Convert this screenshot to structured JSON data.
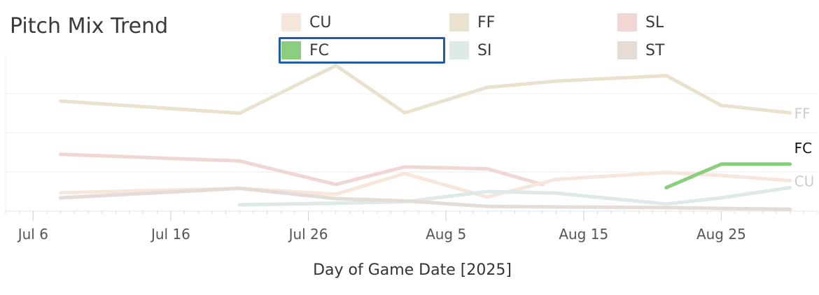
{
  "title": "Pitch Mix Trend",
  "legend": [
    {
      "label": "CU",
      "color": "#f6e6dc",
      "selected": false
    },
    {
      "label": "FF",
      "color": "#e9e2cf",
      "selected": false
    },
    {
      "label": "SL",
      "color": "#f1d6d6",
      "selected": false
    },
    {
      "label": "FC",
      "color": "#8ace7e",
      "selected": true
    },
    {
      "label": "SI",
      "color": "#dfe9e7",
      "selected": false
    },
    {
      "label": "ST",
      "color": "#e4dcd7",
      "selected": false
    }
  ],
  "chart_data": {
    "type": "line",
    "xlabel": "Day of Game Date [2025]",
    "ylabel": "",
    "x_ticks": [
      "Jul 6",
      "Jul 16",
      "Jul 26",
      "Aug 5",
      "Aug 15",
      "Aug 25"
    ],
    "xlim": [
      "2025-07-04",
      "2025-09-01"
    ],
    "ylim": [
      0,
      40
    ],
    "grid": true,
    "series": [
      {
        "name": "FF",
        "color": "#e9e2cf",
        "end_label_color": "#cccccc",
        "points": [
          [
            "2025-07-08",
            28.1
          ],
          [
            "2025-07-21",
            25.0
          ],
          [
            "2025-07-28",
            37.2
          ],
          [
            "2025-08-02",
            25.1
          ],
          [
            "2025-08-08",
            31.6
          ],
          [
            "2025-08-13",
            33.2
          ],
          [
            "2025-08-21",
            34.6
          ],
          [
            "2025-08-25",
            27.0
          ],
          [
            "2025-08-30",
            25.1
          ]
        ]
      },
      {
        "name": "SL",
        "color": "#f1d6d6",
        "points": [
          [
            "2025-07-08",
            14.5
          ],
          [
            "2025-07-21",
            12.8
          ],
          [
            "2025-07-28",
            6.8
          ],
          [
            "2025-08-02",
            11.3
          ],
          [
            "2025-08-08",
            10.8
          ],
          [
            "2025-08-12",
            6.8
          ]
        ]
      },
      {
        "name": "CU",
        "color": "#f6e6dc",
        "end_label_color": "#cccccc",
        "points": [
          [
            "2025-07-08",
            4.7
          ],
          [
            "2025-07-21",
            5.8
          ],
          [
            "2025-07-28",
            4.3
          ],
          [
            "2025-08-02",
            9.6
          ],
          [
            "2025-08-08",
            3.6
          ],
          [
            "2025-08-13",
            8.1
          ],
          [
            "2025-08-21",
            9.9
          ],
          [
            "2025-08-25",
            9.1
          ],
          [
            "2025-08-30",
            7.8
          ]
        ]
      },
      {
        "name": "FC",
        "color": "#8ace7e",
        "end_label_color": "#111111",
        "points": [
          [
            "2025-08-21",
            6.0
          ],
          [
            "2025-08-25",
            12.0
          ],
          [
            "2025-08-30",
            12.0
          ]
        ]
      },
      {
        "name": "SI",
        "color": "#dfe9e7",
        "points": [
          [
            "2025-07-21",
            1.6
          ],
          [
            "2025-07-28",
            2.0
          ],
          [
            "2025-08-02",
            2.4
          ],
          [
            "2025-08-08",
            5.0
          ],
          [
            "2025-08-13",
            4.6
          ],
          [
            "2025-08-21",
            1.8
          ],
          [
            "2025-08-25",
            3.4
          ],
          [
            "2025-08-30",
            6.0
          ]
        ]
      },
      {
        "name": "ST",
        "color": "#e4dcd7",
        "points": [
          [
            "2025-07-08",
            3.4
          ],
          [
            "2025-07-21",
            5.8
          ],
          [
            "2025-07-28",
            3.2
          ],
          [
            "2025-08-02",
            2.6
          ],
          [
            "2025-08-08",
            1.2
          ],
          [
            "2025-08-21",
            0.9
          ],
          [
            "2025-08-25",
            0.7
          ],
          [
            "2025-08-30",
            0.5
          ]
        ]
      }
    ]
  }
}
